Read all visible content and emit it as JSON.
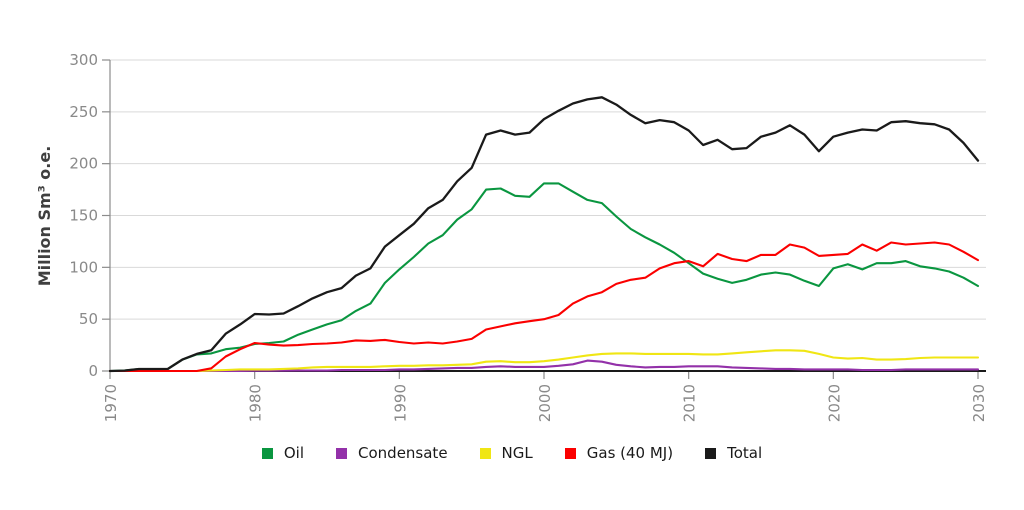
{
  "chart_data": {
    "type": "line",
    "title": "",
    "xlabel": "",
    "ylabel": "Million Sm³ o.e.",
    "xlim": [
      1970,
      2030
    ],
    "ylim": [
      0,
      300
    ],
    "x_ticks": [
      1970,
      1980,
      1990,
      2000,
      2010,
      2020,
      2030
    ],
    "y_ticks": [
      0,
      50,
      100,
      150,
      200,
      250,
      300
    ],
    "grid": "horizontal-only",
    "legend_position": "bottom-center",
    "axis_colors": {
      "grid": "#d9d9d9",
      "spine": "#8c8c8c",
      "baseline": "#1a1a1a",
      "tick_text": "#898989",
      "axis_title": "#3f3f3f"
    },
    "x": [
      1970,
      1971,
      1972,
      1973,
      1974,
      1975,
      1976,
      1977,
      1978,
      1979,
      1980,
      1981,
      1982,
      1983,
      1984,
      1985,
      1986,
      1987,
      1988,
      1989,
      1990,
      1991,
      1992,
      1993,
      1994,
      1995,
      1996,
      1997,
      1998,
      1999,
      2000,
      2001,
      2002,
      2003,
      2004,
      2005,
      2006,
      2007,
      2008,
      2009,
      2010,
      2011,
      2012,
      2013,
      2014,
      2015,
      2016,
      2017,
      2018,
      2019,
      2020,
      2021,
      2022,
      2023,
      2024,
      2025,
      2026,
      2027,
      2028,
      2029,
      2030
    ],
    "series": [
      {
        "name": "Oil",
        "color": "#0a9640",
        "values": [
          0,
          0.4,
          1.9,
          1.9,
          2,
          11,
          16,
          17,
          21,
          22.5,
          26,
          27,
          28.5,
          35,
          40,
          45,
          49,
          58,
          65,
          85,
          98,
          110,
          123,
          131,
          146,
          156,
          175,
          176,
          169,
          168,
          181,
          181,
          173,
          165,
          162,
          149,
          137,
          129,
          122,
          114,
          104,
          94,
          89,
          85,
          88,
          93,
          95,
          93,
          87,
          82,
          99,
          103,
          98,
          104,
          104,
          106,
          101,
          99,
          96,
          90,
          82
        ]
      },
      {
        "name": "Condensate",
        "color": "#9331a9",
        "values": [
          0,
          0,
          0,
          0,
          0,
          0,
          0,
          0,
          0,
          0,
          0.3,
          0.3,
          0.4,
          0.5,
          0.5,
          0.5,
          1,
          1,
          1,
          1,
          1.5,
          1.5,
          2,
          2.5,
          3,
          3,
          4,
          4.5,
          4,
          4,
          4,
          5,
          6.5,
          10,
          9,
          6,
          4.5,
          3.5,
          4,
          4,
          4.5,
          4.5,
          4.5,
          3.5,
          3,
          2.5,
          2,
          2,
          1.5,
          1.5,
          1.5,
          1.5,
          1,
          1,
          1,
          1.5,
          1.5,
          1.5,
          1.5,
          1.5,
          1.5
        ]
      },
      {
        "name": "NGL",
        "color": "#f0e614",
        "values": [
          0,
          0,
          0,
          0,
          0,
          0,
          0,
          0.5,
          1,
          1.5,
          1.5,
          1.5,
          2,
          2.5,
          3.5,
          4,
          4,
          4,
          4,
          4.5,
          5,
          5,
          5.5,
          5.5,
          6,
          6.5,
          9,
          9.5,
          8.5,
          8.5,
          9.5,
          11,
          13,
          15,
          16.5,
          17,
          17,
          16.5,
          16.5,
          16.5,
          16.5,
          16,
          16,
          17,
          18,
          19,
          20,
          20,
          19.5,
          16.5,
          13,
          12,
          12.5,
          11,
          11,
          11.5,
          12.5,
          13,
          13,
          13,
          13
        ]
      },
      {
        "name": "Gas (40 MJ)",
        "color": "#fb0000",
        "values": [
          0,
          0,
          0,
          0,
          0,
          0,
          0,
          2.6,
          14,
          21,
          27,
          25.5,
          24.5,
          25,
          26,
          26.5,
          27.5,
          29.5,
          29,
          30,
          28,
          26.5,
          27.5,
          26.5,
          28.5,
          31,
          40,
          43,
          46,
          48,
          50,
          54,
          65,
          72,
          76,
          84,
          88,
          90,
          99,
          104,
          106,
          101,
          113,
          108,
          106,
          112,
          112,
          122,
          119,
          111,
          112,
          113,
          122,
          116,
          124,
          122,
          123,
          124,
          122,
          115,
          107
        ]
      },
      {
        "name": "Total",
        "color": "#1a1a1a",
        "values": [
          0,
          0.4,
          1.9,
          1.9,
          2,
          11,
          16.5,
          20,
          36,
          45,
          55,
          54.5,
          55.5,
          62.5,
          70,
          76,
          80,
          92,
          99,
          120,
          131,
          142,
          157,
          165,
          183,
          196,
          228,
          232,
          228,
          230,
          243,
          251,
          258,
          262,
          264,
          257,
          247,
          239,
          242,
          240,
          232,
          218,
          223,
          214,
          215,
          226,
          230,
          237,
          228,
          212,
          226,
          230,
          233,
          232,
          240,
          241,
          239,
          238,
          233,
          220,
          203
        ]
      }
    ]
  },
  "legend": {
    "items": [
      "Oil",
      "Condensate",
      "NGL",
      "Gas (40 MJ)",
      "Total"
    ]
  }
}
